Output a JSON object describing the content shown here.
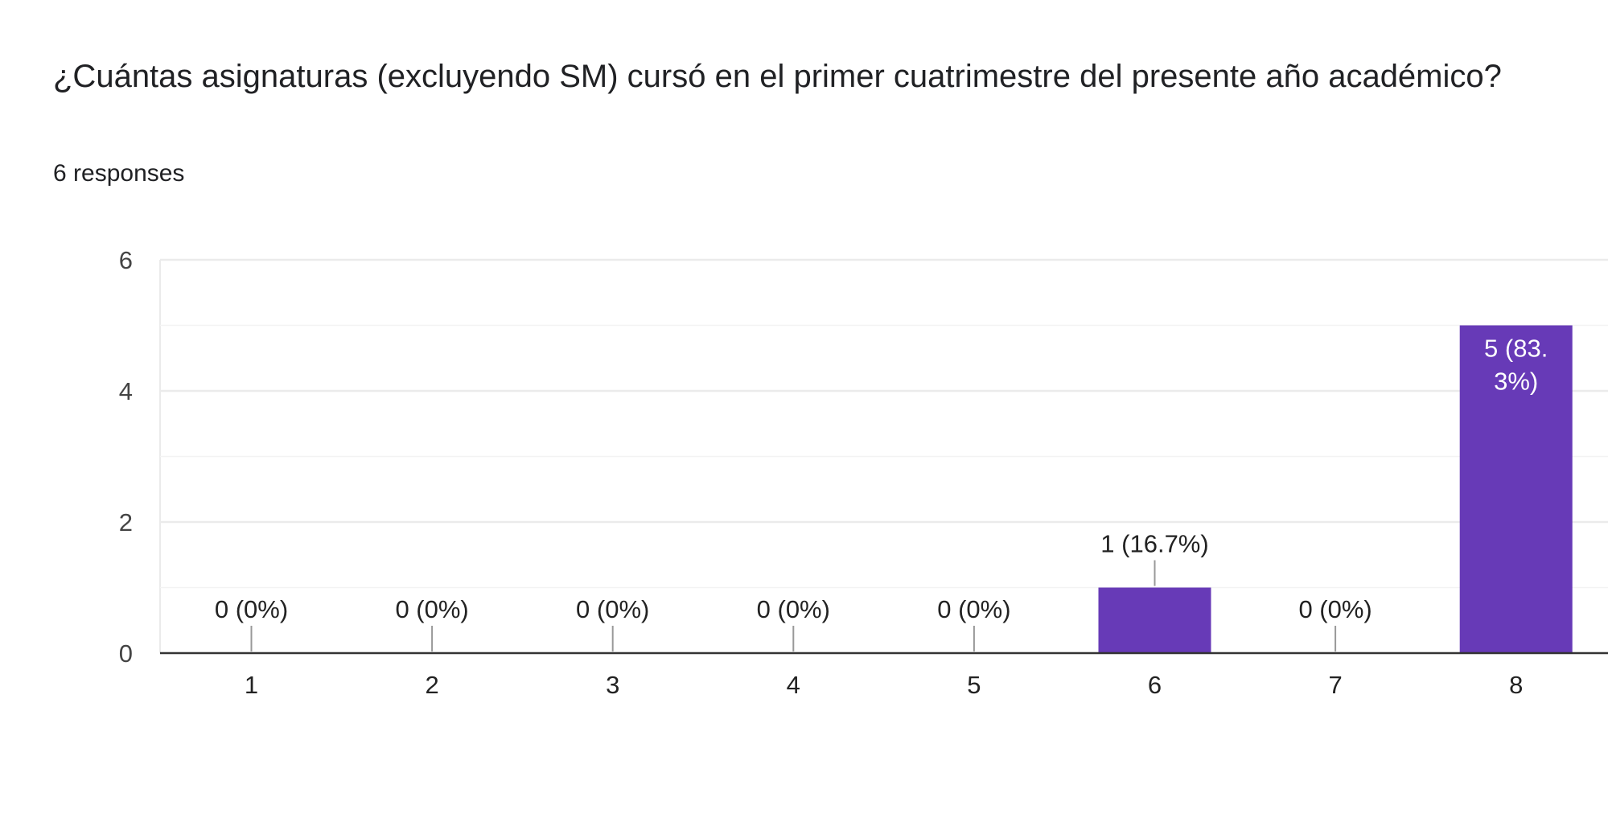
{
  "question": {
    "title": "¿Cuántas asignaturas (excluyendo SM) cursó en el primer cuatrimestre del presente año académico?",
    "responses": "6 responses"
  },
  "colors": {
    "bar": "#673ab7",
    "grid": "#ebebeb",
    "baseline": "#333333",
    "leader": "#999999"
  },
  "chart_data": {
    "type": "bar",
    "categories": [
      "1",
      "2",
      "3",
      "4",
      "5",
      "6",
      "7",
      "8"
    ],
    "values": [
      0,
      0,
      0,
      0,
      0,
      1,
      0,
      5
    ],
    "data_labels": [
      "0 (0%)",
      "0 (0%)",
      "0 (0%)",
      "0 (0%)",
      "0 (0%)",
      "1 (16.7%)",
      "0 (0%)",
      "5 (83.\n3%)"
    ],
    "ylim": [
      0,
      6
    ],
    "y_ticks": [
      0,
      2,
      4,
      6
    ],
    "minor_gridlines": [
      1,
      3,
      5
    ],
    "grid": true,
    "legend": "none",
    "title": "",
    "xlabel": "",
    "ylabel": ""
  }
}
